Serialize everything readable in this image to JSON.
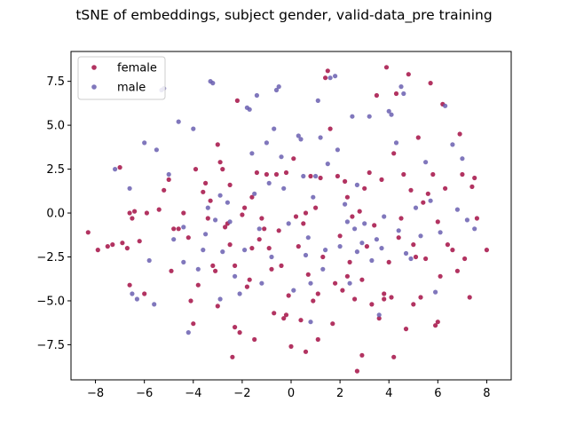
{
  "chart_data": {
    "type": "scatter",
    "title": "tSNE of embeddings, subject gender, valid-data_pre training",
    "xlabel": "",
    "ylabel": "",
    "xlim": [
      -9,
      9
    ],
    "ylim": [
      -9.5,
      9.2
    ],
    "xticks": [
      -8,
      -6,
      -4,
      -2,
      0,
      2,
      4,
      6,
      8
    ],
    "yticks": [
      -7.5,
      -5.0,
      -2.5,
      0.0,
      2.5,
      5.0,
      7.5
    ],
    "xtick_labels": [
      "−8",
      "−6",
      "−4",
      "−2",
      "0",
      "2",
      "4",
      "6",
      "8"
    ],
    "ytick_labels": [
      "−7.5",
      "−5.0",
      "−2.5",
      "0.0",
      "2.5",
      "5.0",
      "7.5"
    ],
    "grid": false,
    "legend_position": "top-left",
    "series": [
      {
        "name": "female",
        "color": "#a50f45",
        "points": [
          [
            -8.3,
            -1.1
          ],
          [
            -7.9,
            -2.1
          ],
          [
            -7.5,
            -1.9
          ],
          [
            -7.3,
            -1.8
          ],
          [
            -7.0,
            2.6
          ],
          [
            -6.9,
            -1.7
          ],
          [
            -6.7,
            -2.0
          ],
          [
            -6.6,
            0.0
          ],
          [
            -6.6,
            -4.1
          ],
          [
            -6.5,
            -0.3
          ],
          [
            -6.4,
            0.1
          ],
          [
            -6.2,
            -1.6
          ],
          [
            -6.0,
            -4.6
          ],
          [
            -5.9,
            0.0
          ],
          [
            -5.4,
            0.2
          ],
          [
            -5.2,
            1.3
          ],
          [
            -5.0,
            1.9
          ],
          [
            -4.9,
            -3.3
          ],
          [
            -4.8,
            -0.9
          ],
          [
            -4.6,
            -0.9
          ],
          [
            -4.4,
            0.0
          ],
          [
            -4.2,
            -1.4
          ],
          [
            -4.1,
            -5.0
          ],
          [
            -4.0,
            -6.3
          ],
          [
            -3.9,
            2.5
          ],
          [
            -3.8,
            -4.1
          ],
          [
            -3.6,
            1.2
          ],
          [
            -3.5,
            1.7
          ],
          [
            -3.4,
            -0.3
          ],
          [
            -3.3,
            0.7
          ],
          [
            -3.2,
            -3.0
          ],
          [
            -3.1,
            -3.3
          ],
          [
            -3.0,
            3.9
          ],
          [
            -2.9,
            2.9
          ],
          [
            -2.8,
            2.5
          ],
          [
            -2.7,
            -0.8
          ],
          [
            -2.6,
            -0.6
          ],
          [
            -2.5,
            1.6
          ],
          [
            -2.5,
            -1.8
          ],
          [
            -2.4,
            -8.2
          ],
          [
            -2.3,
            -3.0
          ],
          [
            -2.3,
            -6.5
          ],
          [
            -2.2,
            6.4
          ],
          [
            -2.1,
            -6.8
          ],
          [
            -2.0,
            -0.1
          ],
          [
            -1.9,
            0.3
          ],
          [
            -1.8,
            -4.2
          ],
          [
            -1.7,
            -3.8
          ],
          [
            -1.6,
            -2.0
          ],
          [
            -1.5,
            -7.2
          ],
          [
            -1.4,
            2.3
          ],
          [
            -1.3,
            -1.5
          ],
          [
            -1.2,
            -0.3
          ],
          [
            -1.1,
            -0.9
          ],
          [
            -1.0,
            2.2
          ],
          [
            -0.9,
            -2.0
          ],
          [
            -0.8,
            -3.2
          ],
          [
            -0.7,
            -5.7
          ],
          [
            -0.6,
            2.2
          ],
          [
            -0.5,
            -1.0
          ],
          [
            -0.4,
            -3.0
          ],
          [
            -0.3,
            -6.0
          ],
          [
            -0.2,
            2.3
          ],
          [
            -0.1,
            -4.7
          ],
          [
            0.0,
            -7.6
          ],
          [
            0.1,
            3.1
          ],
          [
            0.2,
            -0.2
          ],
          [
            0.3,
            -1.9
          ],
          [
            0.4,
            -6.1
          ],
          [
            0.5,
            -0.6
          ],
          [
            0.6,
            -7.9
          ],
          [
            0.7,
            -3.5
          ],
          [
            0.8,
            2.1
          ],
          [
            0.9,
            -5.0
          ],
          [
            1.0,
            0.3
          ],
          [
            1.1,
            -7.2
          ],
          [
            1.2,
            2.0
          ],
          [
            1.3,
            -2.5
          ],
          [
            1.4,
            7.7
          ],
          [
            1.5,
            8.1
          ],
          [
            1.6,
            4.8
          ],
          [
            1.7,
            -6.3
          ],
          [
            1.8,
            -4.0
          ],
          [
            1.9,
            2.1
          ],
          [
            2.0,
            -1.3
          ],
          [
            2.1,
            -4.4
          ],
          [
            2.2,
            1.8
          ],
          [
            2.3,
            0.9
          ],
          [
            2.4,
            -2.8
          ],
          [
            2.5,
            -0.2
          ],
          [
            2.6,
            -4.9
          ],
          [
            2.7,
            -9.0
          ],
          [
            2.8,
            0.1
          ],
          [
            2.9,
            -3.8
          ],
          [
            3.0,
            1.4
          ],
          [
            3.1,
            -1.9
          ],
          [
            3.2,
            2.3
          ],
          [
            3.3,
            -5.2
          ],
          [
            3.4,
            -0.7
          ],
          [
            3.5,
            6.7
          ],
          [
            3.6,
            -6.0
          ],
          [
            3.7,
            1.9
          ],
          [
            3.8,
            -4.6
          ],
          [
            3.9,
            8.3
          ],
          [
            4.0,
            -2.8
          ],
          [
            4.1,
            -4.8
          ],
          [
            4.2,
            3.4
          ],
          [
            4.2,
            -8.2
          ],
          [
            4.3,
            6.8
          ],
          [
            4.4,
            -1.4
          ],
          [
            4.5,
            -0.3
          ],
          [
            4.6,
            2.2
          ],
          [
            4.7,
            -6.6
          ],
          [
            4.8,
            7.9
          ],
          [
            4.9,
            1.3
          ],
          [
            5.0,
            -1.8
          ],
          [
            5.1,
            -2.5
          ],
          [
            5.2,
            4.3
          ],
          [
            5.3,
            -4.8
          ],
          [
            5.4,
            0.6
          ],
          [
            5.5,
            -2.6
          ],
          [
            5.6,
            1.1
          ],
          [
            5.7,
            7.4
          ],
          [
            5.8,
            2.2
          ],
          [
            5.9,
            -6.4
          ],
          [
            6.0,
            -0.5
          ],
          [
            6.1,
            -3.6
          ],
          [
            6.2,
            6.2
          ],
          [
            6.3,
            1.4
          ],
          [
            6.4,
            -1.8
          ],
          [
            6.6,
            -2.1
          ],
          [
            6.8,
            -3.3
          ],
          [
            6.9,
            4.5
          ],
          [
            7.0,
            2.2
          ],
          [
            7.1,
            -2.6
          ],
          [
            7.3,
            -4.8
          ],
          [
            7.4,
            1.5
          ],
          [
            7.5,
            2.0
          ],
          [
            7.6,
            -0.3
          ],
          [
            8.0,
            -2.1
          ],
          [
            2.9,
            -8.1
          ],
          [
            -0.2,
            -5.8
          ],
          [
            1.1,
            -4.6
          ],
          [
            3.8,
            -4.9
          ],
          [
            5.0,
            -5.2
          ],
          [
            6.0,
            -6.2
          ],
          [
            -3.0,
            -5.3
          ],
          [
            -1.6,
            0.9
          ],
          [
            0.6,
            0.0
          ],
          [
            2.3,
            -3.6
          ]
        ]
      },
      {
        "name": "male",
        "color": "#6a5fb0",
        "points": [
          [
            -7.2,
            2.5
          ],
          [
            -6.6,
            1.4
          ],
          [
            -6.5,
            -4.6
          ],
          [
            -6.3,
            -4.9
          ],
          [
            -6.0,
            4.0
          ],
          [
            -5.8,
            -2.7
          ],
          [
            -5.6,
            -5.2
          ],
          [
            -5.5,
            3.6
          ],
          [
            -5.3,
            7.0
          ],
          [
            -5.2,
            7.1
          ],
          [
            -4.8,
            -1.5
          ],
          [
            -4.6,
            5.2
          ],
          [
            -4.4,
            -0.8
          ],
          [
            -4.2,
            -6.8
          ],
          [
            -4.0,
            4.8
          ],
          [
            -3.8,
            -3.2
          ],
          [
            -3.6,
            -2.1
          ],
          [
            -3.5,
            -1.2
          ],
          [
            -3.4,
            0.3
          ],
          [
            -3.3,
            7.5
          ],
          [
            -3.2,
            7.4
          ],
          [
            -3.1,
            -0.4
          ],
          [
            -2.9,
            -4.9
          ],
          [
            -2.8,
            -2.2
          ],
          [
            -2.6,
            0.6
          ],
          [
            -2.5,
            -0.5
          ],
          [
            -2.3,
            -3.6
          ],
          [
            -2.1,
            -4.6
          ],
          [
            -1.9,
            -2.1
          ],
          [
            -1.8,
            6.0
          ],
          [
            -1.7,
            5.9
          ],
          [
            -1.6,
            3.4
          ],
          [
            -1.5,
            1.1
          ],
          [
            -1.4,
            6.7
          ],
          [
            -1.3,
            -0.9
          ],
          [
            -1.2,
            -4.0
          ],
          [
            -1.0,
            4.0
          ],
          [
            -0.9,
            1.7
          ],
          [
            -0.7,
            4.8
          ],
          [
            -0.6,
            7.0
          ],
          [
            -0.5,
            7.2
          ],
          [
            -0.4,
            3.2
          ],
          [
            -0.3,
            1.4
          ],
          [
            -0.1,
            -0.6
          ],
          [
            0.1,
            -4.4
          ],
          [
            0.3,
            4.4
          ],
          [
            0.4,
            4.2
          ],
          [
            0.5,
            2.1
          ],
          [
            0.6,
            -2.4
          ],
          [
            0.7,
            -1.4
          ],
          [
            0.8,
            -6.2
          ],
          [
            0.9,
            0.9
          ],
          [
            1.0,
            2.1
          ],
          [
            1.1,
            6.4
          ],
          [
            1.2,
            4.3
          ],
          [
            1.4,
            -2.1
          ],
          [
            1.5,
            2.8
          ],
          [
            1.6,
            7.7
          ],
          [
            1.8,
            7.8
          ],
          [
            1.9,
            3.6
          ],
          [
            2.0,
            -1.9
          ],
          [
            2.2,
            0.5
          ],
          [
            2.3,
            -0.5
          ],
          [
            2.4,
            -4.0
          ],
          [
            2.5,
            5.5
          ],
          [
            2.6,
            -0.9
          ],
          [
            2.7,
            -2.2
          ],
          [
            2.9,
            -1.7
          ],
          [
            3.0,
            -0.6
          ],
          [
            3.2,
            5.5
          ],
          [
            3.3,
            -2.7
          ],
          [
            3.5,
            -1.5
          ],
          [
            3.6,
            -5.8
          ],
          [
            3.7,
            -2.0
          ],
          [
            3.8,
            -0.2
          ],
          [
            4.0,
            5.8
          ],
          [
            4.1,
            5.6
          ],
          [
            4.3,
            4.0
          ],
          [
            4.5,
            7.2
          ],
          [
            4.6,
            6.8
          ],
          [
            4.7,
            -2.3
          ],
          [
            4.9,
            -2.6
          ],
          [
            5.1,
            0.3
          ],
          [
            5.3,
            -1.3
          ],
          [
            5.5,
            2.9
          ],
          [
            5.7,
            0.7
          ],
          [
            5.9,
            -4.5
          ],
          [
            6.1,
            -1.1
          ],
          [
            6.3,
            6.1
          ],
          [
            6.6,
            3.9
          ],
          [
            6.8,
            0.2
          ],
          [
            7.0,
            3.1
          ],
          [
            7.2,
            -0.4
          ],
          [
            7.5,
            -0.9
          ],
          [
            -0.8,
            -2.5
          ],
          [
            1.3,
            -3.2
          ],
          [
            2.7,
            1.6
          ],
          [
            4.4,
            -1.0
          ],
          [
            -2.9,
            1.0
          ],
          [
            -5.0,
            2.2
          ],
          [
            -4.4,
            -2.8
          ],
          [
            0.8,
            -4.0
          ]
        ]
      }
    ]
  }
}
